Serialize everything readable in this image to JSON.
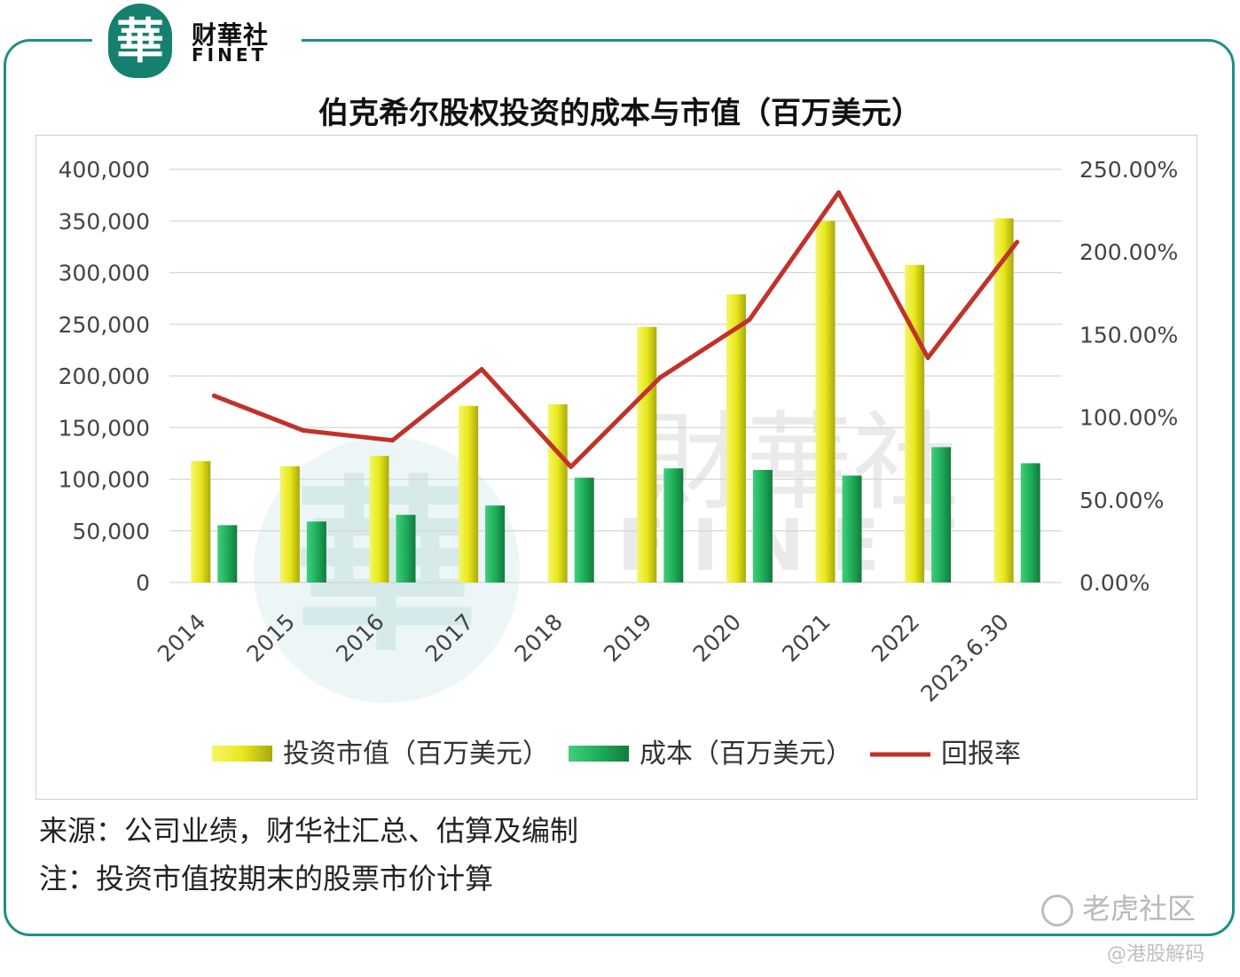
{
  "logo": {
    "mark": "華",
    "brand_cn": "财華社",
    "brand_en": "FINET"
  },
  "chart_data": {
    "type": "bar",
    "title": "伯克希尔股权投资的成本与市值（百万美元）",
    "categories": [
      "2014",
      "2015",
      "2016",
      "2017",
      "2018",
      "2019",
      "2020",
      "2021",
      "2022",
      "2023.6.30"
    ],
    "series": [
      {
        "name": "投资市值（百万美元）",
        "type": "bar",
        "axis": "left",
        "color": "#e2e21a",
        "values": [
          117500,
          112500,
          122500,
          171000,
          172500,
          247500,
          279000,
          350000,
          307500,
          352500
        ]
      },
      {
        "name": "成本（百万美元）",
        "type": "bar",
        "axis": "left",
        "color": "#1fae5a",
        "values": [
          55500,
          59000,
          65500,
          74500,
          101500,
          110500,
          109000,
          103500,
          131000,
          115500
        ]
      },
      {
        "name": "回报率",
        "type": "line",
        "axis": "right",
        "color": "#c0322a",
        "values": [
          113,
          92,
          86,
          129,
          70,
          124,
          159,
          236,
          136,
          206
        ]
      }
    ],
    "y_left": {
      "ylim": [
        0,
        400000
      ],
      "ticks": [
        "0",
        "50,000",
        "100,000",
        "150,000",
        "200,000",
        "250,000",
        "300,000",
        "350,000",
        "400,000"
      ]
    },
    "y_right": {
      "ylim": [
        0,
        250
      ],
      "ticks": [
        "0.00%",
        "50.00%",
        "100.00%",
        "150.00%",
        "200.00%",
        "250.00%"
      ]
    },
    "grid": true,
    "legend": "bottom",
    "colors": {
      "bar_market_value": "#e2e21a",
      "bar_cost": "#1fae5a",
      "line_return": "#c0322a",
      "frame": "#1e8f86"
    }
  },
  "notes": {
    "source": "来源：公司业绩，财华社汇总、估算及编制",
    "footnote": "注：投资市值按期末的股票市价计算"
  },
  "watermarks": {
    "center_cn": "財華社",
    "center_en": "FINET",
    "site": "老虎社区",
    "author": "@港股解码"
  }
}
